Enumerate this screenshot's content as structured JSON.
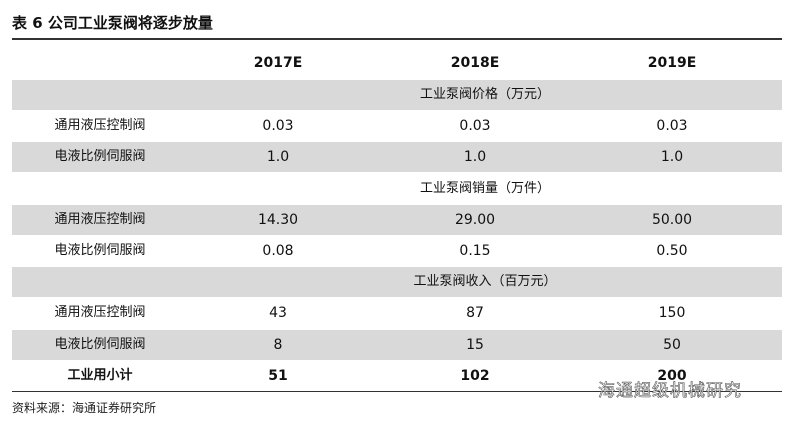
{
  "header": {
    "title": "表 6 公司工业泵阀将逐步放量"
  },
  "table": {
    "columns": [
      "2017E",
      "2018E",
      "2019E"
    ],
    "sections": [
      {
        "title": "工业泵阀价格（万元）",
        "rows": [
          {
            "label": "通用液压控制阀",
            "values": [
              "0.03",
              "0.03",
              "0.03"
            ]
          },
          {
            "label": "电液比例伺服阀",
            "values": [
              "1.0",
              "1.0",
              "1.0"
            ]
          }
        ]
      },
      {
        "title": "工业泵阀销量（万件）",
        "rows": [
          {
            "label": "通用液压控制阀",
            "values": [
              "14.30",
              "29.00",
              "50.00"
            ]
          },
          {
            "label": "电液比例伺服阀",
            "values": [
              "0.08",
              "0.15",
              "0.50"
            ]
          }
        ]
      },
      {
        "title": "工业泵阀收入（百万元）",
        "rows": [
          {
            "label": "通用液压控制阀",
            "values": [
              "43",
              "87",
              "150"
            ]
          },
          {
            "label": "电液比例伺服阀",
            "values": [
              "8",
              "15",
              "50"
            ]
          }
        ]
      }
    ],
    "subtotal": {
      "label": "工业用小计",
      "values": [
        "51",
        "102",
        "200"
      ]
    }
  },
  "footer": {
    "source": "资料来源：海通证券研究所"
  },
  "watermark": "海通超级机械研究"
}
